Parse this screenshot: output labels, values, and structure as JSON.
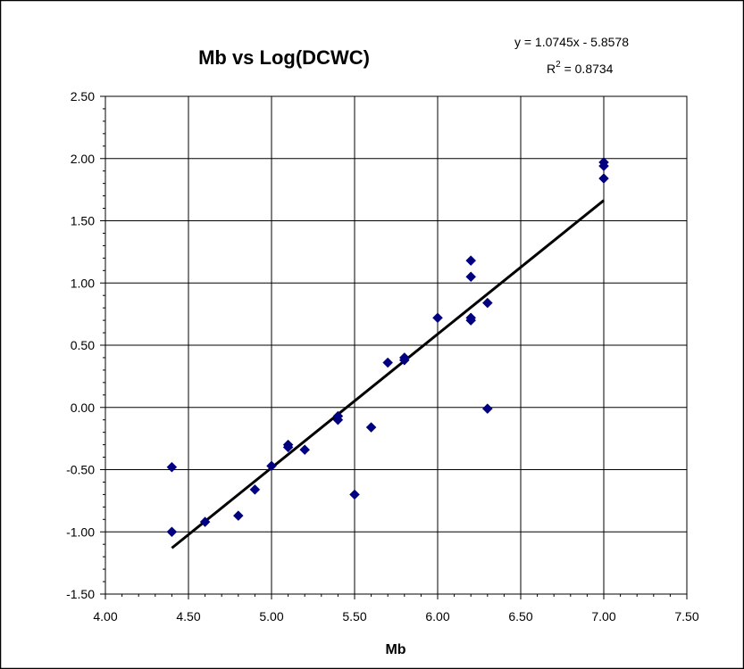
{
  "chart_data": {
    "type": "scatter",
    "title": "Mb vs Log(DCWC)",
    "xlabel": "Mb",
    "ylabel": "",
    "xlim": [
      4.0,
      7.5
    ],
    "ylim": [
      -1.5,
      2.5
    ],
    "x_ticks": [
      "4.00",
      "4.50",
      "5.00",
      "5.50",
      "6.00",
      "6.50",
      "7.00",
      "7.50"
    ],
    "y_ticks": [
      "-1.50",
      "-1.00",
      "-0.50",
      "0.00",
      "0.50",
      "1.00",
      "1.50",
      "2.00",
      "2.50"
    ],
    "grid": true,
    "legend": "none",
    "marker": "diamond",
    "marker_color": "#000080",
    "points": [
      {
        "x": 4.4,
        "y": -0.48
      },
      {
        "x": 4.4,
        "y": -1.0
      },
      {
        "x": 4.6,
        "y": -0.92
      },
      {
        "x": 4.8,
        "y": -0.87
      },
      {
        "x": 4.9,
        "y": -0.66
      },
      {
        "x": 5.0,
        "y": -0.47
      },
      {
        "x": 5.1,
        "y": -0.3
      },
      {
        "x": 5.1,
        "y": -0.32
      },
      {
        "x": 5.2,
        "y": -0.34
      },
      {
        "x": 5.4,
        "y": -0.07
      },
      {
        "x": 5.4,
        "y": -0.1
      },
      {
        "x": 5.5,
        "y": -0.7
      },
      {
        "x": 5.6,
        "y": -0.16
      },
      {
        "x": 5.7,
        "y": 0.36
      },
      {
        "x": 5.8,
        "y": 0.4
      },
      {
        "x": 5.8,
        "y": 0.38
      },
      {
        "x": 6.0,
        "y": 0.72
      },
      {
        "x": 6.2,
        "y": 1.18
      },
      {
        "x": 6.2,
        "y": 1.05
      },
      {
        "x": 6.2,
        "y": 0.72
      },
      {
        "x": 6.2,
        "y": 0.7
      },
      {
        "x": 6.3,
        "y": 0.84
      },
      {
        "x": 6.3,
        "y": -0.01
      },
      {
        "x": 7.0,
        "y": 1.97
      },
      {
        "x": 7.0,
        "y": 1.94
      },
      {
        "x": 7.0,
        "y": 1.84
      }
    ],
    "trendline": {
      "slope": 1.0745,
      "intercept": -5.8578,
      "x_range": [
        4.4,
        7.0
      ],
      "color": "#000000"
    },
    "equation_text": "y = 1.0745x - 5.8578",
    "r2_prefix": "R",
    "r2_sup": "2",
    "r2_value": " = 0.8734"
  }
}
